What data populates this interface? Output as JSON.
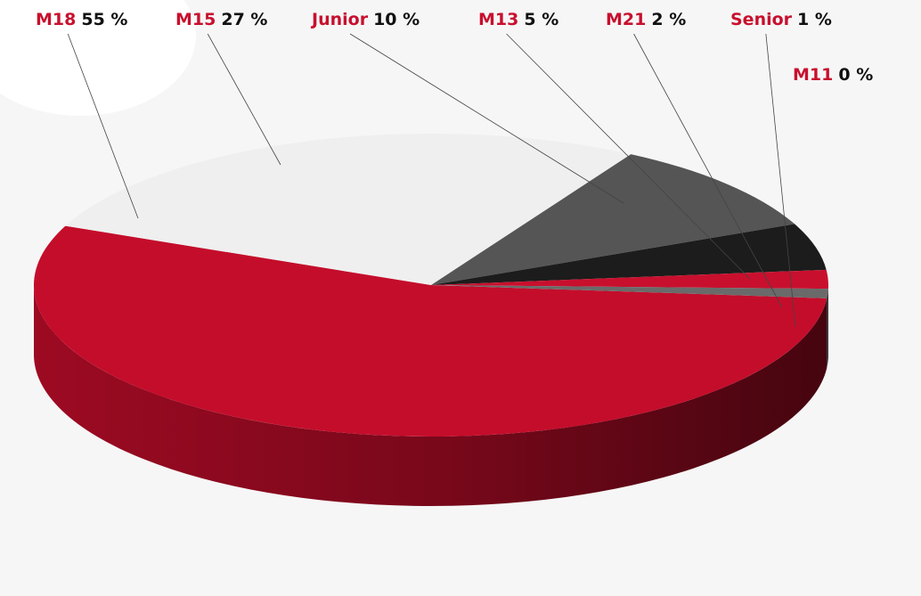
{
  "chart_data": {
    "type": "pie3d",
    "categories": [
      "M18",
      "M15",
      "Junior",
      "M13",
      "M21",
      "Senior",
      "M11"
    ],
    "values": [
      55,
      27,
      10,
      5,
      2,
      1,
      0
    ],
    "value_labels": [
      "55 %",
      "27 %",
      "10 %",
      "5 %",
      "2 %",
      "1 %",
      "0 %"
    ],
    "colors": [
      "#c40d2b",
      "#efefef",
      "#555555",
      "#1c1c1c",
      "#c8102e",
      "#6a6a6a",
      "#8a1a2a"
    ]
  }
}
